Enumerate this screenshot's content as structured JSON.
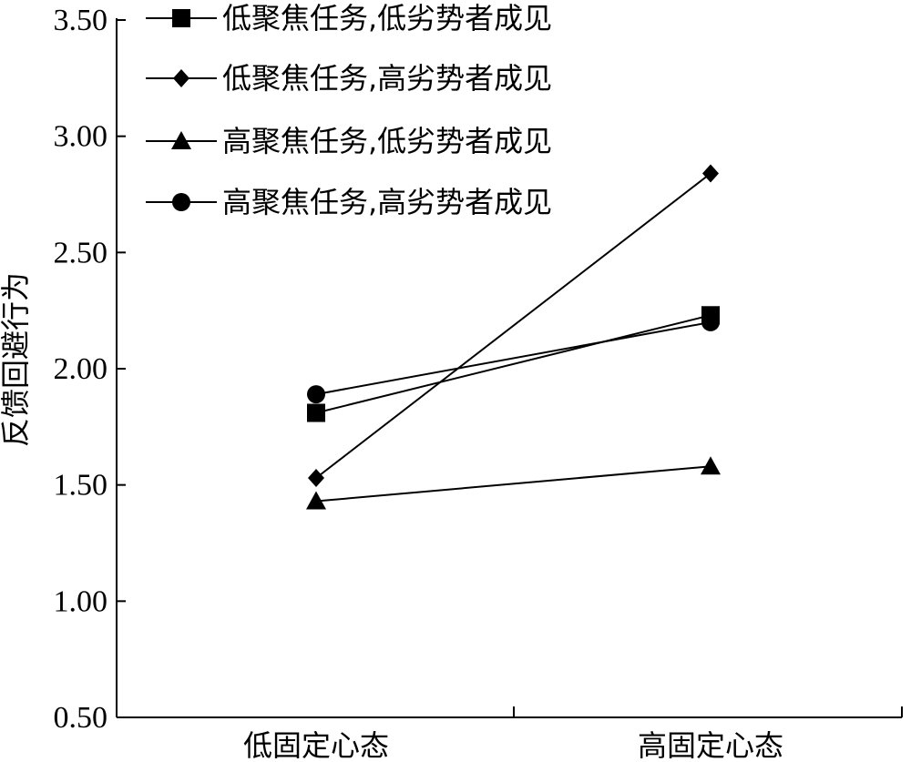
{
  "chart_data": {
    "type": "line",
    "categories": [
      "低固定心态",
      "高固定心态"
    ],
    "ylabel": "反馈回避行为",
    "xlabel": "",
    "ylim": [
      0.5,
      3.5
    ],
    "yticks": [
      "0.50",
      "1.00",
      "1.50",
      "2.00",
      "2.50",
      "3.00",
      "3.50"
    ],
    "grid": false,
    "legend_position": "top-left",
    "series": [
      {
        "name": "低聚焦任务,低劣势者成见",
        "marker": "square",
        "values": [
          1.81,
          2.23
        ]
      },
      {
        "name": "低聚焦任务,高劣势者成见",
        "marker": "diamond",
        "values": [
          1.53,
          2.84
        ]
      },
      {
        "name": "高聚焦任务,低劣势者成见",
        "marker": "triangle",
        "values": [
          1.43,
          1.58
        ]
      },
      {
        "name": "高聚焦任务,高劣势者成见",
        "marker": "circle",
        "values": [
          1.89,
          2.2
        ]
      }
    ],
    "colors": {
      "line": "#000000",
      "marker": "#000000",
      "axis": "#000000"
    }
  }
}
